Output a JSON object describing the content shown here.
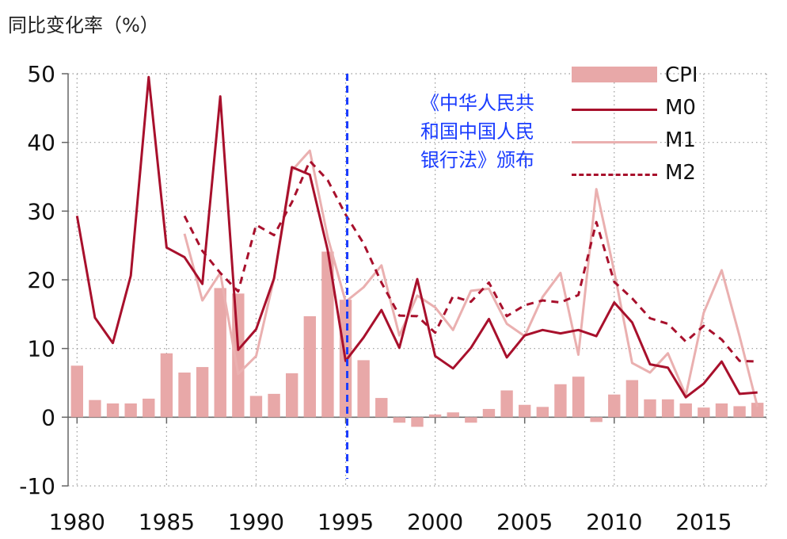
{
  "y_axis_title": "同比变化率（%）",
  "annotation": "《中华人民共\n和国中国人民\n银行法》颁布",
  "colors": {
    "cpi": "#e8a8a8",
    "m0": "#a8102c",
    "m1": "#eab0b0",
    "m2": "#a8102c",
    "annotation": "#1a3cff"
  },
  "legend": [
    {
      "key": "cpi",
      "label": "CPI"
    },
    {
      "key": "m0",
      "label": "M0"
    },
    {
      "key": "m1",
      "label": "M1"
    },
    {
      "key": "m2",
      "label": "M2"
    }
  ],
  "chart_data": {
    "type": "bar+line",
    "title": "",
    "xlabel": "",
    "ylabel": "同比变化率（%）",
    "ylim": [
      -10,
      50
    ],
    "yticks": [
      -10,
      0,
      10,
      20,
      30,
      40,
      50
    ],
    "xlim": [
      1979.5,
      2018.5
    ],
    "xticks": [
      1980,
      1985,
      1990,
      1995,
      2000,
      2005,
      2010,
      2015
    ],
    "grid": "dotted",
    "legend_position": "top-right",
    "vline": {
      "x": 1995,
      "style": "dashed",
      "label": "《中华人民共和国中国人民银行法》颁布"
    },
    "x": [
      1980,
      1981,
      1982,
      1983,
      1984,
      1985,
      1986,
      1987,
      1988,
      1989,
      1990,
      1991,
      1992,
      1993,
      1994,
      1995,
      1996,
      1997,
      1998,
      1999,
      2000,
      2001,
      2002,
      2003,
      2004,
      2005,
      2006,
      2007,
      2008,
      2009,
      2010,
      2011,
      2012,
      2013,
      2014,
      2015,
      2016,
      2017,
      2018
    ],
    "series": [
      {
        "name": "CPI",
        "type": "bar",
        "values": [
          7.5,
          2.5,
          2.0,
          2.0,
          2.7,
          9.3,
          6.5,
          7.3,
          18.8,
          18.0,
          3.1,
          3.4,
          6.4,
          14.7,
          24.1,
          17.1,
          8.3,
          2.8,
          -0.8,
          -1.4,
          0.4,
          0.7,
          -0.8,
          1.2,
          3.9,
          1.8,
          1.5,
          4.8,
          5.9,
          -0.7,
          3.3,
          5.4,
          2.6,
          2.6,
          2.0,
          1.4,
          2.0,
          1.6,
          2.1
        ]
      },
      {
        "name": "M0",
        "type": "line",
        "values": [
          29.3,
          14.5,
          10.8,
          20.6,
          49.5,
          24.7,
          23.3,
          19.4,
          46.7,
          9.8,
          12.8,
          20.2,
          36.4,
          35.3,
          24.3,
          8.2,
          11.6,
          15.6,
          10.1,
          20.1,
          8.9,
          7.1,
          10.1,
          14.3,
          8.7,
          11.9,
          12.7,
          12.2,
          12.7,
          11.8,
          16.7,
          13.8,
          7.7,
          7.2,
          2.9,
          4.9,
          8.1,
          3.4,
          3.6
        ]
      },
      {
        "name": "M1",
        "type": "line",
        "values": [
          null,
          null,
          null,
          null,
          null,
          null,
          26.7,
          17.0,
          21.0,
          6.3,
          8.9,
          20.2,
          35.9,
          38.8,
          26.2,
          16.8,
          18.9,
          22.1,
          11.9,
          17.7,
          16.0,
          12.7,
          18.4,
          18.7,
          13.6,
          11.8,
          17.5,
          21.0,
          9.1,
          33.2,
          21.2,
          7.9,
          6.5,
          9.3,
          3.2,
          15.2,
          21.4,
          11.8,
          1.5
        ]
      },
      {
        "name": "M2",
        "type": "line",
        "values": [
          null,
          null,
          null,
          null,
          null,
          null,
          29.3,
          24.2,
          21.0,
          18.3,
          28.0,
          26.5,
          31.3,
          37.3,
          34.5,
          29.5,
          25.3,
          19.6,
          14.8,
          14.7,
          12.3,
          17.6,
          16.8,
          19.6,
          14.7,
          16.3,
          17.0,
          16.7,
          17.8,
          28.4,
          19.7,
          17.3,
          14.4,
          13.6,
          11.0,
          13.3,
          11.3,
          8.2,
          8.1
        ]
      }
    ]
  }
}
